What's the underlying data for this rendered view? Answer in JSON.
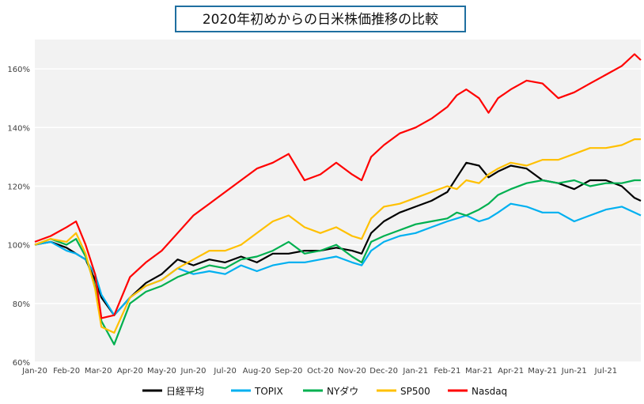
{
  "chart_data": {
    "type": "line",
    "title": "2020年初めからの日米株価推移の比較",
    "xlabel": "",
    "ylabel": "",
    "ylim": [
      60,
      170
    ],
    "y_ticks": [
      60,
      80,
      100,
      120,
      140,
      160
    ],
    "y_tick_labels": [
      "60%",
      "80%",
      "100%",
      "120%",
      "140%",
      "160%"
    ],
    "x_tick_labels": [
      "Jan-20",
      "Feb-20",
      "Mar-20",
      "Apr-20",
      "May-20",
      "Jun-20",
      "Jul-20",
      "Aug-20",
      "Sep-20",
      "Oct-20",
      "Nov-20",
      "Dec-20",
      "Jan-21",
      "Feb-21",
      "Mar-21",
      "Apr-21",
      "May-21",
      "Jun-21",
      "Jul-21"
    ],
    "x_range": [
      0,
      19.1
    ],
    "grid": "horizontal",
    "legend_position": "bottom",
    "series": [
      {
        "name": "日経平均",
        "color": "#000000",
        "x": [
          0,
          0.5,
          1,
          1.3,
          1.6,
          1.9,
          2.1,
          2.5,
          3,
          3.5,
          4,
          4.5,
          5,
          5.5,
          6,
          6.5,
          7,
          7.5,
          8,
          8.5,
          9,
          9.5,
          10,
          10.3,
          10.6,
          11,
          11.5,
          12,
          12.5,
          13,
          13.3,
          13.6,
          14,
          14.3,
          14.6,
          15,
          15.5,
          16,
          16.5,
          17,
          17.5,
          18,
          18.5,
          18.9,
          19.1
        ],
        "values": [
          100,
          101,
          99,
          97,
          95,
          88,
          82,
          76,
          82,
          87,
          90,
          95,
          93,
          95,
          94,
          96,
          94,
          97,
          97,
          98,
          98,
          99,
          98,
          97,
          104,
          108,
          111,
          113,
          115,
          118,
          123,
          128,
          127,
          123,
          125,
          127,
          126,
          122,
          121,
          119,
          122,
          122,
          120,
          116,
          115
        ]
      },
      {
        "name": "TOPIX",
        "color": "#00b0f0",
        "x": [
          0,
          0.5,
          1,
          1.3,
          1.6,
          1.9,
          2.1,
          2.5,
          3,
          3.5,
          4,
          4.5,
          5,
          5.5,
          6,
          6.5,
          7,
          7.5,
          8,
          8.5,
          9,
          9.5,
          10,
          10.3,
          10.6,
          11,
          11.5,
          12,
          12.5,
          13,
          13.3,
          13.6,
          14,
          14.3,
          14.6,
          15,
          15.5,
          16,
          16.5,
          17,
          17.5,
          18,
          18.5,
          18.9,
          19.1
        ],
        "values": [
          100,
          101,
          98,
          97,
          95,
          90,
          83,
          76,
          82,
          86,
          88,
          92,
          90,
          91,
          90,
          93,
          91,
          93,
          94,
          94,
          95,
          96,
          94,
          93,
          98,
          101,
          103,
          104,
          106,
          108,
          109,
          110,
          108,
          109,
          111,
          114,
          113,
          111,
          111,
          108,
          110,
          112,
          113,
          111,
          110
        ]
      },
      {
        "name": "NYダウ",
        "color": "#00b050",
        "x": [
          0,
          0.5,
          1,
          1.3,
          1.6,
          1.9,
          2.1,
          2.5,
          3,
          3.5,
          4,
          4.5,
          5,
          5.5,
          6,
          6.5,
          7,
          7.5,
          8,
          8.5,
          9,
          9.5,
          10,
          10.3,
          10.6,
          11,
          11.5,
          12,
          12.5,
          13,
          13.3,
          13.6,
          14,
          14.3,
          14.6,
          15,
          15.5,
          16,
          16.5,
          17,
          17.5,
          18,
          18.5,
          18.9,
          19.1
        ],
        "values": [
          100,
          102,
          100,
          102,
          96,
          86,
          74,
          66,
          80,
          84,
          86,
          89,
          91,
          93,
          92,
          95,
          96,
          98,
          101,
          97,
          98,
          100,
          96,
          94,
          101,
          103,
          105,
          107,
          108,
          109,
          111,
          110,
          112,
          114,
          117,
          119,
          121,
          122,
          121,
          122,
          120,
          121,
          121,
          122,
          122
        ]
      },
      {
        "name": "SP500",
        "color": "#ffc000",
        "x": [
          0,
          0.5,
          1,
          1.3,
          1.6,
          1.9,
          2.1,
          2.5,
          3,
          3.5,
          4,
          4.5,
          5,
          5.5,
          6,
          6.5,
          7,
          7.5,
          8,
          8.5,
          9,
          9.5,
          10,
          10.3,
          10.6,
          11,
          11.5,
          12,
          12.5,
          13,
          13.3,
          13.6,
          14,
          14.3,
          14.6,
          15,
          15.5,
          16,
          16.5,
          17,
          17.5,
          18,
          18.5,
          18.9,
          19.1
        ],
        "values": [
          100,
          102,
          101,
          104,
          97,
          85,
          72,
          70,
          82,
          86,
          88,
          92,
          95,
          98,
          98,
          100,
          104,
          108,
          110,
          106,
          104,
          106,
          103,
          102,
          109,
          113,
          114,
          116,
          118,
          120,
          119,
          122,
          121,
          124,
          126,
          128,
          127,
          129,
          129,
          131,
          133,
          133,
          134,
          136,
          136
        ]
      },
      {
        "name": "Nasdaq",
        "color": "#ff0000",
        "x": [
          0,
          0.5,
          1,
          1.3,
          1.6,
          1.9,
          2.1,
          2.5,
          3,
          3.5,
          4,
          4.5,
          5,
          5.5,
          6,
          6.5,
          7,
          7.5,
          8,
          8.5,
          9,
          9.5,
          10,
          10.3,
          10.6,
          11,
          11.5,
          12,
          12.5,
          13,
          13.3,
          13.6,
          14,
          14.3,
          14.6,
          15,
          15.5,
          16,
          16.5,
          17,
          17.5,
          18,
          18.5,
          18.9,
          19.1
        ],
        "values": [
          101,
          103,
          106,
          108,
          100,
          90,
          75,
          76,
          89,
          94,
          98,
          104,
          110,
          114,
          118,
          122,
          126,
          128,
          131,
          122,
          124,
          128,
          124,
          122,
          130,
          134,
          138,
          140,
          143,
          147,
          151,
          153,
          150,
          145,
          150,
          153,
          156,
          155,
          150,
          152,
          155,
          158,
          161,
          165,
          163
        ]
      }
    ]
  }
}
